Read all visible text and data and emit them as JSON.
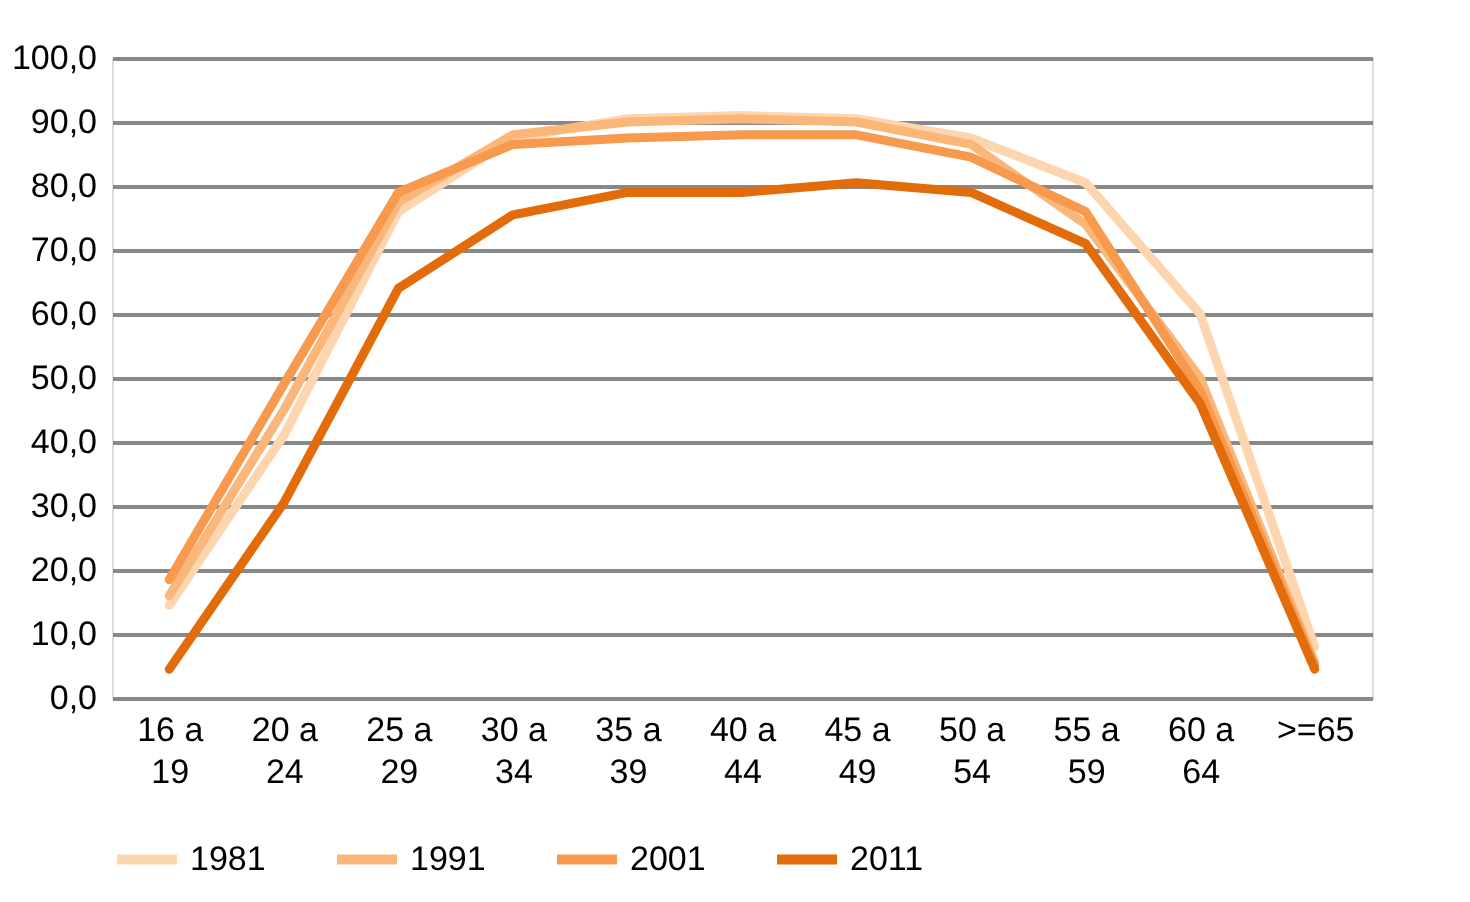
{
  "chart_data": {
    "type": "line",
    "categories": [
      "16 a\n19",
      "20 a\n24",
      "25 a\n29",
      "30 a\n34",
      "35 a\n39",
      "40 a\n44",
      "45 a\n49",
      "50 a\n54",
      "55 a\n59",
      "60 a\n64",
      ">=65"
    ],
    "series": [
      {
        "name": "1981",
        "color": "#fdd5ae",
        "values": [
          14.5,
          41,
          76,
          87.5,
          90.5,
          91,
          90.5,
          87.5,
          80.5,
          60,
          8
        ]
      },
      {
        "name": "1991",
        "color": "#fbb77a",
        "values": [
          16,
          45,
          77.5,
          88,
          90,
          90.5,
          90,
          86.5,
          74,
          50,
          5.5
        ]
      },
      {
        "name": "2001",
        "color": "#f79a4d",
        "values": [
          18.5,
          49,
          79,
          86.5,
          87.5,
          88,
          88,
          84.5,
          76,
          48,
          5
        ]
      },
      {
        "name": "2011",
        "color": "#e36c0a",
        "values": [
          4.5,
          30.5,
          64,
          75.5,
          79,
          79,
          80.5,
          79,
          71,
          46,
          4.5
        ]
      }
    ],
    "ylim": [
      0,
      100
    ],
    "yticks": [
      {
        "value": 0,
        "label": "0,0"
      },
      {
        "value": 10,
        "label": "10,0"
      },
      {
        "value": 20,
        "label": "20,0"
      },
      {
        "value": 30,
        "label": "30,0"
      },
      {
        "value": 40,
        "label": "40,0"
      },
      {
        "value": 50,
        "label": "50,0"
      },
      {
        "value": 60,
        "label": "60,0"
      },
      {
        "value": 70,
        "label": "70,0"
      },
      {
        "value": 80,
        "label": "80,0"
      },
      {
        "value": 90,
        "label": "90,0"
      },
      {
        "value": 100,
        "label": "100,0"
      }
    ],
    "grid": "y",
    "legend": "bottom",
    "marker": "none",
    "line_style": "solid"
  }
}
